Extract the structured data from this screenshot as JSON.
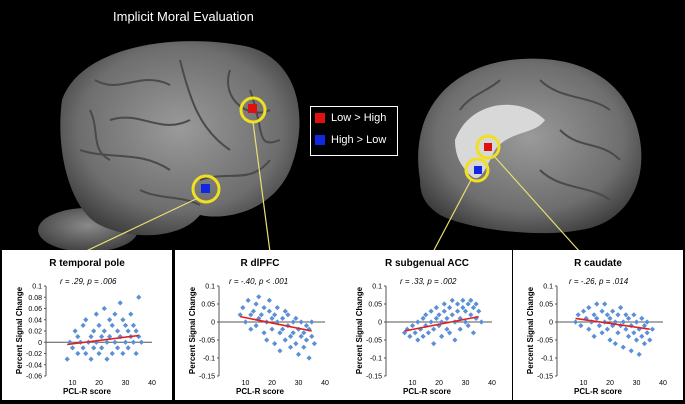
{
  "figure": {
    "title": "Implicit Moral Evaluation",
    "legend": [
      {
        "label": "Low > High",
        "color": "#e01010"
      },
      {
        "label": "High > Low",
        "color": "#1028e0"
      }
    ],
    "highlight_color": "#f0e020"
  },
  "chart_data": [
    {
      "type": "scatter",
      "title": "R temporal pole",
      "stats": "r = .29, p = .006",
      "xlabel": "PCL-R score",
      "ylabel": "Percent Signal Change",
      "xlim": [
        0,
        40
      ],
      "ylim": [
        -0.06,
        0.1
      ],
      "xticks": [
        10,
        20,
        30,
        40
      ],
      "yticks": [
        -0.06,
        -0.04,
        -0.02,
        0,
        0.02,
        0.04,
        0.06,
        0.08,
        0.1
      ],
      "ytick_labels": [
        "-0.06",
        "-0.04",
        "-0.02",
        "0",
        "0.02",
        "0.04",
        "0.06",
        "0.08",
        "0.1"
      ],
      "trend": {
        "x": [
          8,
          35
        ],
        "y": [
          -0.004,
          0.012
        ]
      },
      "points": [
        [
          8,
          -0.03
        ],
        [
          9,
          0.0
        ],
        [
          10,
          -0.01
        ],
        [
          11,
          0.02
        ],
        [
          12,
          -0.02
        ],
        [
          12,
          0.01
        ],
        [
          13,
          0.0
        ],
        [
          14,
          0.03
        ],
        [
          14,
          -0.01
        ],
        [
          15,
          -0.02
        ],
        [
          15,
          0.04
        ],
        [
          16,
          0.0
        ],
        [
          17,
          0.01
        ],
        [
          17,
          -0.03
        ],
        [
          18,
          0.02
        ],
        [
          18,
          -0.01
        ],
        [
          19,
          0.05
        ],
        [
          19,
          0.0
        ],
        [
          20,
          -0.02
        ],
        [
          20,
          0.03
        ],
        [
          21,
          0.01
        ],
        [
          21,
          -0.01
        ],
        [
          22,
          0.06
        ],
        [
          22,
          0.02
        ],
        [
          23,
          -0.03
        ],
        [
          23,
          0.0
        ],
        [
          24,
          0.04
        ],
        [
          24,
          0.01
        ],
        [
          25,
          -0.02
        ],
        [
          25,
          0.03
        ],
        [
          26,
          0.05
        ],
        [
          26,
          0.0
        ],
        [
          27,
          0.02
        ],
        [
          27,
          -0.01
        ],
        [
          28,
          0.07
        ],
        [
          28,
          0.01
        ],
        [
          29,
          -0.02
        ],
        [
          29,
          0.04
        ],
        [
          30,
          0.03
        ],
        [
          30,
          0.0
        ],
        [
          31,
          0.02
        ],
        [
          31,
          -0.01
        ],
        [
          32,
          0.05
        ],
        [
          32,
          0.01
        ],
        [
          33,
          0.0
        ],
        [
          33,
          0.03
        ],
        [
          34,
          0.02
        ],
        [
          34,
          -0.02
        ],
        [
          35,
          0.08
        ],
        [
          35,
          0.01
        ],
        [
          36,
          0.0
        ]
      ]
    },
    {
      "type": "scatter",
      "title": "R dlPFC",
      "stats": "r = -.40, p < .001",
      "xlabel": "PCL-R score",
      "ylabel": "Percent Signal Change",
      "xlim": [
        0,
        40
      ],
      "ylim": [
        -0.15,
        0.1
      ],
      "xticks": [
        10,
        20,
        30,
        40
      ],
      "yticks": [
        -0.15,
        -0.1,
        -0.05,
        0,
        0.05,
        0.1
      ],
      "ytick_labels": [
        "-0.15",
        "-0.1",
        "-0.05",
        "0",
        "0.05",
        "0.1"
      ],
      "trend": {
        "x": [
          8,
          35
        ],
        "y": [
          0.015,
          -0.025
        ]
      },
      "points": [
        [
          8,
          0.02
        ],
        [
          9,
          0.04
        ],
        [
          10,
          0.0
        ],
        [
          11,
          0.06
        ],
        [
          12,
          0.02
        ],
        [
          12,
          -0.02
        ],
        [
          13,
          0.03
        ],
        [
          14,
          0.05
        ],
        [
          14,
          -0.01
        ],
        [
          15,
          0.01
        ],
        [
          15,
          0.07
        ],
        [
          16,
          0.02
        ],
        [
          17,
          -0.03
        ],
        [
          17,
          0.04
        ],
        [
          18,
          0.0
        ],
        [
          18,
          -0.05
        ],
        [
          19,
          0.03
        ],
        [
          19,
          0.06
        ],
        [
          20,
          -0.02
        ],
        [
          20,
          0.01
        ],
        [
          21,
          0.02
        ],
        [
          21,
          -0.06
        ],
        [
          22,
          0.0
        ],
        [
          22,
          0.04
        ],
        [
          23,
          -0.03
        ],
        [
          23,
          -0.08
        ],
        [
          24,
          0.01
        ],
        [
          24,
          -0.02
        ],
        [
          25,
          0.03
        ],
        [
          25,
          -0.05
        ],
        [
          26,
          -0.01
        ],
        [
          26,
          0.02
        ],
        [
          27,
          -0.04
        ],
        [
          27,
          -0.07
        ],
        [
          28,
          0.0
        ],
        [
          28,
          -0.03
        ],
        [
          29,
          -0.06
        ],
        [
          29,
          0.01
        ],
        [
          30,
          -0.02
        ],
        [
          30,
          -0.09
        ],
        [
          31,
          -0.04
        ],
        [
          31,
          0.0
        ],
        [
          32,
          -0.03
        ],
        [
          32,
          -0.07
        ],
        [
          33,
          -0.01
        ],
        [
          33,
          -0.05
        ],
        [
          34,
          -0.02
        ],
        [
          34,
          -0.1
        ],
        [
          35,
          -0.04
        ],
        [
          35,
          0.0
        ],
        [
          36,
          -0.06
        ]
      ]
    },
    {
      "type": "scatter",
      "title": "R subgenual ACC",
      "stats": "r = .33, p = .002",
      "xlabel": "PCL-R score",
      "ylabel": "Percent Signal Change",
      "xlim": [
        0,
        40
      ],
      "ylim": [
        -0.15,
        0.1
      ],
      "xticks": [
        10,
        20,
        30,
        40
      ],
      "yticks": [
        -0.15,
        -0.1,
        -0.05,
        0,
        0.05,
        0.1
      ],
      "ytick_labels": [
        "-0.15",
        "-0.1",
        "-0.05",
        "0",
        "0.05",
        "0.1"
      ],
      "trend": {
        "x": [
          7,
          35
        ],
        "y": [
          -0.025,
          0.015
        ]
      },
      "points": [
        [
          7,
          -0.03
        ],
        [
          8,
          -0.02
        ],
        [
          9,
          -0.04
        ],
        [
          10,
          -0.01
        ],
        [
          11,
          -0.03
        ],
        [
          12,
          0.0
        ],
        [
          12,
          -0.05
        ],
        [
          13,
          -0.02
        ],
        [
          14,
          0.01
        ],
        [
          14,
          -0.04
        ],
        [
          15,
          -0.01
        ],
        [
          15,
          0.02
        ],
        [
          16,
          -0.03
        ],
        [
          17,
          0.0
        ],
        [
          17,
          0.03
        ],
        [
          18,
          -0.02
        ],
        [
          18,
          -0.06
        ],
        [
          19,
          0.01
        ],
        [
          19,
          0.04
        ],
        [
          20,
          -0.01
        ],
        [
          20,
          0.02
        ],
        [
          21,
          0.0
        ],
        [
          21,
          -0.04
        ],
        [
          22,
          0.03
        ],
        [
          22,
          0.05
        ],
        [
          23,
          -0.02
        ],
        [
          23,
          0.01
        ],
        [
          24,
          0.04
        ],
        [
          24,
          -0.03
        ],
        [
          25,
          0.02
        ],
        [
          25,
          0.06
        ],
        [
          26,
          0.0
        ],
        [
          26,
          -0.05
        ],
        [
          27,
          0.03
        ],
        [
          27,
          0.05
        ],
        [
          28,
          0.01
        ],
        [
          28,
          -0.02
        ],
        [
          29,
          0.04
        ],
        [
          29,
          0.06
        ],
        [
          30,
          0.0
        ],
        [
          30,
          0.03
        ],
        [
          31,
          0.05
        ],
        [
          31,
          -0.01
        ],
        [
          32,
          0.02
        ],
        [
          32,
          0.06
        ],
        [
          33,
          0.04
        ],
        [
          33,
          -0.03
        ],
        [
          34,
          0.01
        ],
        [
          34,
          0.05
        ],
        [
          35,
          0.03
        ],
        [
          36,
          0.0
        ]
      ]
    },
    {
      "type": "scatter",
      "title": "R caudate",
      "stats": "r = -.26, p = .014",
      "xlabel": "PCL-R score",
      "ylabel": "Percent Signal Change",
      "xlim": [
        0,
        40
      ],
      "ylim": [
        -0.15,
        0.1
      ],
      "xticks": [
        10,
        20,
        30,
        40
      ],
      "yticks": [
        -0.15,
        -0.1,
        -0.05,
        0,
        0.05,
        0.1
      ],
      "ytick_labels": [
        "-0.15",
        "-0.1",
        "-0.05",
        "0",
        "0.05",
        "0.1"
      ],
      "trend": {
        "x": [
          7,
          35
        ],
        "y": [
          0.01,
          -0.02
        ]
      },
      "points": [
        [
          7,
          0.0
        ],
        [
          8,
          0.02
        ],
        [
          9,
          -0.01
        ],
        [
          10,
          0.03
        ],
        [
          11,
          0.01
        ],
        [
          12,
          -0.02
        ],
        [
          12,
          0.04
        ],
        [
          13,
          0.0
        ],
        [
          14,
          0.02
        ],
        [
          14,
          -0.04
        ],
        [
          15,
          0.01
        ],
        [
          15,
          0.05
        ],
        [
          16,
          -0.01
        ],
        [
          17,
          0.03
        ],
        [
          17,
          -0.03
        ],
        [
          18,
          0.0
        ],
        [
          18,
          0.05
        ],
        [
          19,
          -0.02
        ],
        [
          19,
          0.02
        ],
        [
          20,
          -0.05
        ],
        [
          20,
          0.01
        ],
        [
          21,
          0.03
        ],
        [
          21,
          -0.01
        ],
        [
          22,
          0.0
        ],
        [
          22,
          -0.06
        ],
        [
          23,
          0.02
        ],
        [
          23,
          -0.03
        ],
        [
          24,
          0.04
        ],
        [
          24,
          -0.01
        ],
        [
          25,
          0.0
        ],
        [
          25,
          -0.07
        ],
        [
          26,
          0.02
        ],
        [
          26,
          -0.02
        ],
        [
          27,
          -0.04
        ],
        [
          27,
          0.01
        ],
        [
          28,
          -0.01
        ],
        [
          28,
          -0.08
        ],
        [
          29,
          0.02
        ],
        [
          29,
          -0.03
        ],
        [
          30,
          -0.05
        ],
        [
          30,
          0.0
        ],
        [
          31,
          -0.02
        ],
        [
          31,
          -0.09
        ],
        [
          32,
          0.01
        ],
        [
          32,
          -0.04
        ],
        [
          33,
          -0.01
        ],
        [
          33,
          -0.06
        ],
        [
          34,
          -0.03
        ],
        [
          34,
          0.0
        ],
        [
          35,
          -0.05
        ],
        [
          36,
          -0.02
        ]
      ]
    }
  ]
}
